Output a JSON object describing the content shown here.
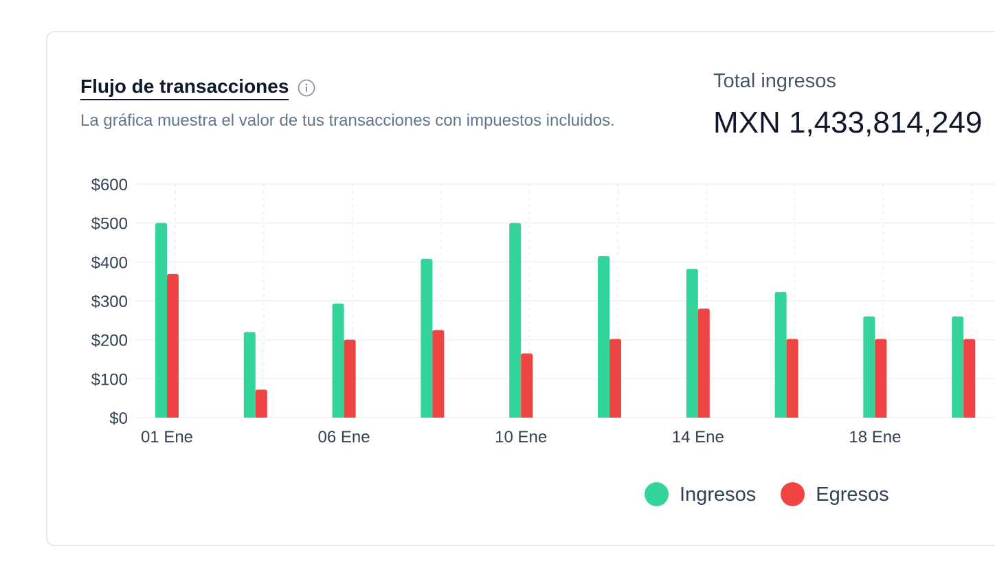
{
  "header": {
    "title": "Flujo de transacciones",
    "subtitle": "La gráfica muestra el valor de tus transacciones con impuestos incluidos.",
    "info_icon": "info-icon"
  },
  "summary": {
    "label": "Total ingresos",
    "value": "MXN 1,433,814,249"
  },
  "colors": {
    "ingresos": "#34d399",
    "egresos": "#ef4444",
    "grid": "#f1f3f6",
    "axis_text": "#334155"
  },
  "chart_data": {
    "type": "bar",
    "categories": [
      "01 Ene",
      "",
      "06 Ene",
      "",
      "10 Ene",
      "",
      "14 Ene",
      "",
      "18 Ene",
      ""
    ],
    "series": [
      {
        "name": "Ingresos",
        "values": [
          500,
          220,
          293,
          408,
          500,
          415,
          382,
          323,
          260,
          260
        ]
      },
      {
        "name": "Egresos",
        "values": [
          369,
          72,
          200,
          225,
          165,
          202,
          280,
          202,
          202,
          202
        ]
      }
    ],
    "ylim": [
      0,
      600
    ],
    "yticks": [
      "$0",
      "$100",
      "$200",
      "$300",
      "$400",
      "$500",
      "$600"
    ],
    "grid": true,
    "legend": "bottom-right"
  }
}
